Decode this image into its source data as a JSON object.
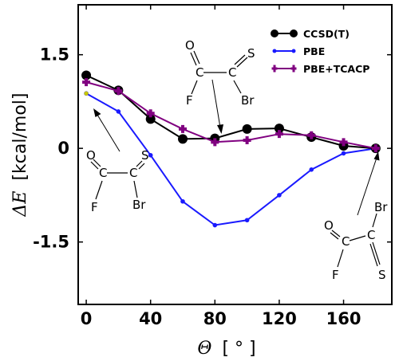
{
  "chart_data": {
    "type": "line",
    "xlabel_symbol": "Θ",
    "xlabel_unit": "[ ° ]",
    "ylabel_symbol": "ΔE",
    "ylabel_unit": "[kcal/mol]",
    "xlim": [
      -5,
      190
    ],
    "ylim": [
      -2.5,
      2.3
    ],
    "xticks": [
      0,
      40,
      80,
      120,
      160
    ],
    "xtick_labels": [
      "0",
      "40",
      "80",
      "120",
      "160"
    ],
    "yticks": [
      1.5,
      0,
      -1.5
    ],
    "ytick_labels": [
      "1.5",
      "0",
      "-1.5"
    ],
    "x": [
      0,
      20,
      40,
      60,
      80,
      100,
      120,
      140,
      160,
      180
    ],
    "legend_position": "top-right",
    "series": [
      {
        "name": "CCSD(T)",
        "color": "#000000",
        "marker": "circle",
        "values": [
          1.17,
          0.93,
          0.47,
          0.15,
          0.16,
          0.31,
          0.32,
          0.18,
          0.04,
          0.0
        ]
      },
      {
        "name": "PBE",
        "color": "#1a1aff",
        "marker": "dot",
        "values": [
          0.88,
          0.59,
          -0.11,
          -0.85,
          -1.23,
          -1.15,
          -0.75,
          -0.34,
          -0.08,
          0.0
        ]
      },
      {
        "name": "PBE+TCACP",
        "color": "#800080",
        "marker": "plus",
        "values": [
          1.06,
          0.92,
          0.56,
          0.31,
          0.1,
          0.13,
          0.23,
          0.21,
          0.1,
          0.0
        ]
      }
    ],
    "extra_point": {
      "x": 0,
      "y": 0.88,
      "color": "#c8c800"
    },
    "molecules": {
      "top": {
        "O": "O",
        "S": "S",
        "C1": "C",
        "C2": "C",
        "F": "F",
        "Br": "Br"
      },
      "left": {
        "O": "O",
        "S": "S",
        "C1": "C",
        "C2": "C",
        "F": "F",
        "Br": "Br"
      },
      "right": {
        "O": "O",
        "Br": "Br",
        "C1": "C",
        "C2": "C",
        "F": "F",
        "S": "S"
      }
    }
  }
}
